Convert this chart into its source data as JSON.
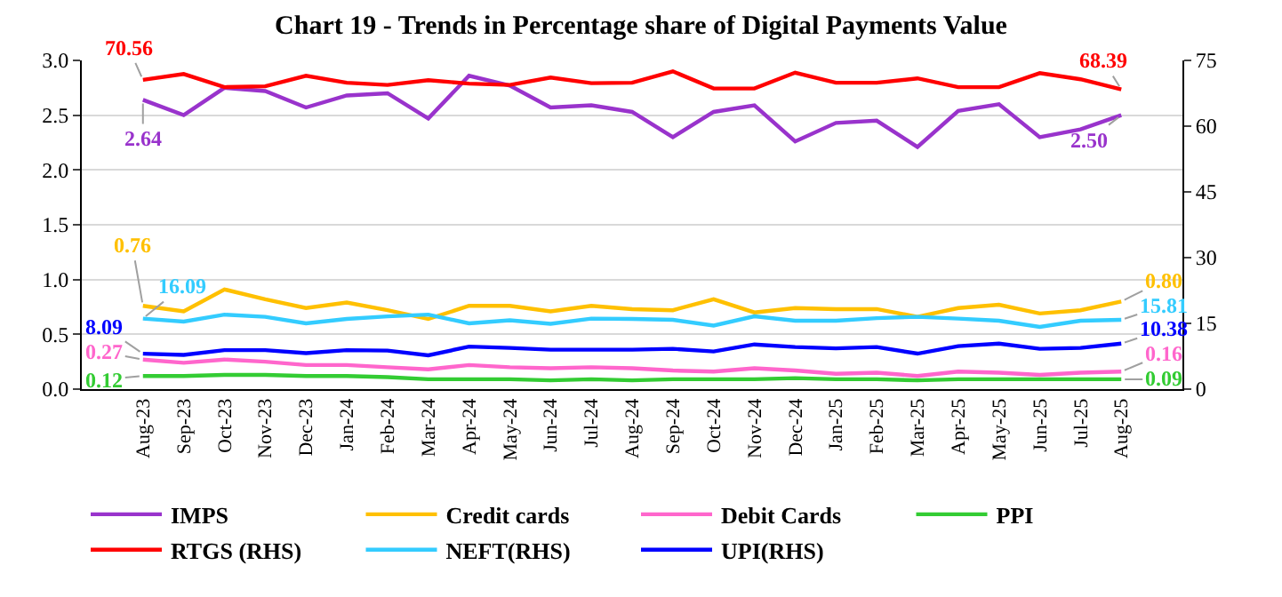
{
  "chart_data": {
    "type": "line",
    "title": "Chart 19 - Trends in Percentage share of Digital Payments Value",
    "categories": [
      "Aug-23",
      "Sep-23",
      "Oct-23",
      "Nov-23",
      "Dec-23",
      "Jan-24",
      "Feb-24",
      "Mar-24",
      "Apr-24",
      "May-24",
      "Jun-24",
      "Jul-24",
      "Aug-24",
      "Sep-24",
      "Oct-24",
      "Nov-24",
      "Dec-24",
      "Jan-25",
      "Feb-25",
      "Mar-25",
      "Apr-25",
      "May-25",
      "Jun-25",
      "Jul-25",
      "Aug-25"
    ],
    "series": [
      {
        "name": "IMPS",
        "color": "#9933cc",
        "values": [
          2.64,
          2.5,
          2.75,
          2.72,
          2.57,
          2.68,
          2.7,
          2.47,
          2.86,
          2.77,
          2.57,
          2.59,
          2.53,
          2.3,
          2.53,
          2.59,
          2.26,
          2.43,
          2.45,
          2.21,
          2.54,
          2.6,
          2.3,
          2.37,
          2.5
        ],
        "value_labels": [
          "2.64",
          null,
          null,
          null,
          null,
          null,
          null,
          null,
          null,
          null,
          null,
          null,
          null,
          null,
          null,
          null,
          null,
          null,
          null,
          null,
          null,
          null,
          null,
          null,
          "2.50"
        ]
      },
      {
        "name": "Credit cards",
        "color": "#ffc000",
        "values": [
          0.76,
          0.71,
          0.91,
          0.82,
          0.74,
          0.79,
          0.72,
          0.64,
          0.76,
          0.76,
          0.71,
          0.76,
          0.73,
          0.72,
          0.82,
          0.7,
          0.74,
          0.73,
          0.73,
          0.66,
          0.74,
          0.77,
          0.69,
          0.72,
          0.8
        ],
        "value_labels": [
          "0.76",
          null,
          null,
          null,
          null,
          null,
          null,
          null,
          null,
          null,
          null,
          null,
          null,
          null,
          null,
          null,
          null,
          null,
          null,
          null,
          null,
          null,
          null,
          null,
          "0.80"
        ]
      },
      {
        "name": "Debit Cards",
        "color": "#ff66cc",
        "values": [
          0.27,
          0.24,
          0.27,
          0.25,
          0.22,
          0.22,
          0.2,
          0.18,
          0.22,
          0.2,
          0.19,
          0.2,
          0.19,
          0.17,
          0.16,
          0.19,
          0.17,
          0.14,
          0.15,
          0.12,
          0.16,
          0.15,
          0.13,
          0.15,
          0.16
        ],
        "value_labels": [
          "0.27",
          null,
          null,
          null,
          null,
          null,
          null,
          null,
          null,
          null,
          null,
          null,
          null,
          null,
          null,
          null,
          null,
          null,
          null,
          null,
          null,
          null,
          null,
          null,
          "0.16"
        ]
      },
      {
        "name": "PPI",
        "color": "#33cc33",
        "values": [
          0.12,
          0.12,
          0.13,
          0.13,
          0.12,
          0.12,
          0.11,
          0.09,
          0.09,
          0.09,
          0.08,
          0.09,
          0.08,
          0.09,
          0.09,
          0.09,
          0.1,
          0.09,
          0.09,
          0.08,
          0.09,
          0.09,
          0.09,
          0.09,
          0.09
        ],
        "value_labels": [
          "0.12",
          null,
          null,
          null,
          null,
          null,
          null,
          null,
          null,
          null,
          null,
          null,
          null,
          null,
          null,
          null,
          null,
          null,
          null,
          null,
          null,
          null,
          null,
          null,
          "0.09"
        ]
      },
      {
        "name": "RTGS (RHS)",
        "color": "#ff0000",
        "axis": "y2",
        "values": [
          70.56,
          71.9,
          68.9,
          69.1,
          71.5,
          69.9,
          69.4,
          70.5,
          69.7,
          69.4,
          71.1,
          69.8,
          69.9,
          72.5,
          68.6,
          68.6,
          72.2,
          69.9,
          69.9,
          70.9,
          68.9,
          68.9,
          72.1,
          70.7,
          68.39
        ],
        "value_labels": [
          "70.56",
          null,
          null,
          null,
          null,
          null,
          null,
          null,
          null,
          null,
          null,
          null,
          null,
          null,
          null,
          null,
          null,
          null,
          null,
          null,
          null,
          null,
          null,
          null,
          "68.39"
        ]
      },
      {
        "name": "NEFT(RHS)",
        "color": "#33ccff",
        "axis": "y2",
        "values": [
          16.09,
          15.4,
          17.0,
          16.5,
          15.0,
          16.0,
          16.6,
          17.0,
          15.0,
          15.7,
          14.9,
          16.1,
          16.0,
          15.8,
          14.5,
          16.6,
          15.6,
          15.6,
          16.2,
          16.5,
          16.1,
          15.6,
          14.2,
          15.6,
          15.81
        ],
        "value_labels": [
          "16.09",
          null,
          null,
          null,
          null,
          null,
          null,
          null,
          null,
          null,
          null,
          null,
          null,
          null,
          null,
          null,
          null,
          null,
          null,
          null,
          null,
          null,
          null,
          null,
          "15.81"
        ]
      },
      {
        "name": "UPI(RHS)",
        "color": "#0000ff",
        "axis": "y2",
        "values": [
          8.09,
          7.8,
          8.9,
          8.9,
          8.2,
          8.9,
          8.8,
          7.7,
          9.7,
          9.4,
          9.0,
          9.0,
          9.0,
          9.2,
          8.6,
          10.2,
          9.6,
          9.3,
          9.6,
          8.1,
          9.8,
          10.4,
          9.2,
          9.4,
          10.38
        ],
        "value_labels": [
          "8.09",
          null,
          null,
          null,
          null,
          null,
          null,
          null,
          null,
          null,
          null,
          null,
          null,
          null,
          null,
          null,
          null,
          null,
          null,
          null,
          null,
          null,
          null,
          null,
          "10.38"
        ]
      }
    ],
    "ylim": [
      0,
      3.0
    ],
    "yticks": [
      {
        "value": 0,
        "label": "0.0"
      },
      {
        "value": 0.5,
        "label": "0.5"
      },
      {
        "value": 1.0,
        "label": "1.0"
      },
      {
        "value": 1.5,
        "label": "1.5"
      },
      {
        "value": 2.0,
        "label": "2.0"
      },
      {
        "value": 2.5,
        "label": "2.5"
      },
      {
        "value": 3.0,
        "label": "3.0"
      }
    ],
    "y2lim": [
      0,
      75
    ],
    "y2ticks": [
      0,
      15,
      30,
      45,
      60,
      75
    ],
    "grid": "y",
    "legend": "bottom",
    "marker": "none",
    "line_style": "solid"
  }
}
